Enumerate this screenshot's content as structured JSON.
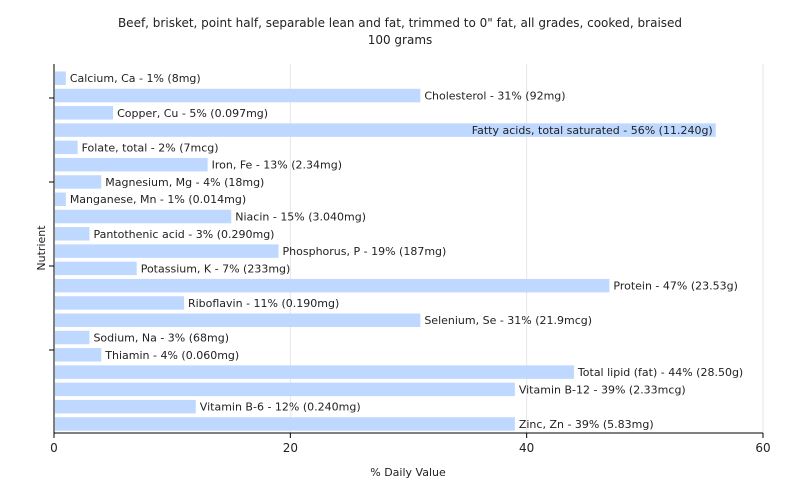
{
  "chart_data": {
    "type": "bar",
    "orientation": "horizontal",
    "title": "Beef, brisket, point half, separable lean and fat, trimmed to 0\" fat, all grades, cooked, braised",
    "subtitle": "100 grams",
    "xlabel": "% Daily Value",
    "ylabel": "Nutrient",
    "xlim": [
      0,
      60
    ],
    "xticks": [
      0,
      20,
      40,
      60
    ],
    "grid": true,
    "bar_color": "#bfd8ff",
    "categories": [
      "Calcium, Ca",
      "Cholesterol",
      "Copper, Cu",
      "Fatty acids, total saturated",
      "Folate, total",
      "Iron, Fe",
      "Magnesium, Mg",
      "Manganese, Mn",
      "Niacin",
      "Pantothenic acid",
      "Phosphorus, P",
      "Potassium, K",
      "Protein",
      "Riboflavin",
      "Selenium, Se",
      "Sodium, Na",
      "Thiamin",
      "Total lipid (fat)",
      "Vitamin B-12",
      "Vitamin B-6",
      "Zinc, Zn"
    ],
    "values": [
      1,
      31,
      5,
      56,
      2,
      13,
      4,
      1,
      15,
      3,
      19,
      7,
      47,
      11,
      31,
      3,
      4,
      44,
      39,
      12,
      39
    ],
    "labels": [
      "Calcium, Ca - 1% (8mg)",
      "Cholesterol - 31% (92mg)",
      "Copper, Cu - 5% (0.097mg)",
      "Fatty acids, total saturated - 56% (11.240g)",
      "Folate, total - 2% (7mcg)",
      "Iron, Fe - 13% (2.34mg)",
      "Magnesium, Mg - 4% (18mg)",
      "Manganese, Mn - 1% (0.014mg)",
      "Niacin - 15% (3.040mg)",
      "Pantothenic acid - 3% (0.290mg)",
      "Phosphorus, P - 19% (187mg)",
      "Potassium, K - 7% (233mg)",
      "Protein - 47% (23.53g)",
      "Riboflavin - 11% (0.190mg)",
      "Selenium, Se - 31% (21.9mcg)",
      "Sodium, Na - 3% (68mg)",
      "Thiamin - 4% (0.060mg)",
      "Total lipid (fat) - 44% (28.50g)",
      "Vitamin B-12 - 39% (2.33mcg)",
      "Vitamin B-6 - 12% (0.240mg)",
      "Zinc, Zn - 39% (5.83mg)"
    ]
  }
}
